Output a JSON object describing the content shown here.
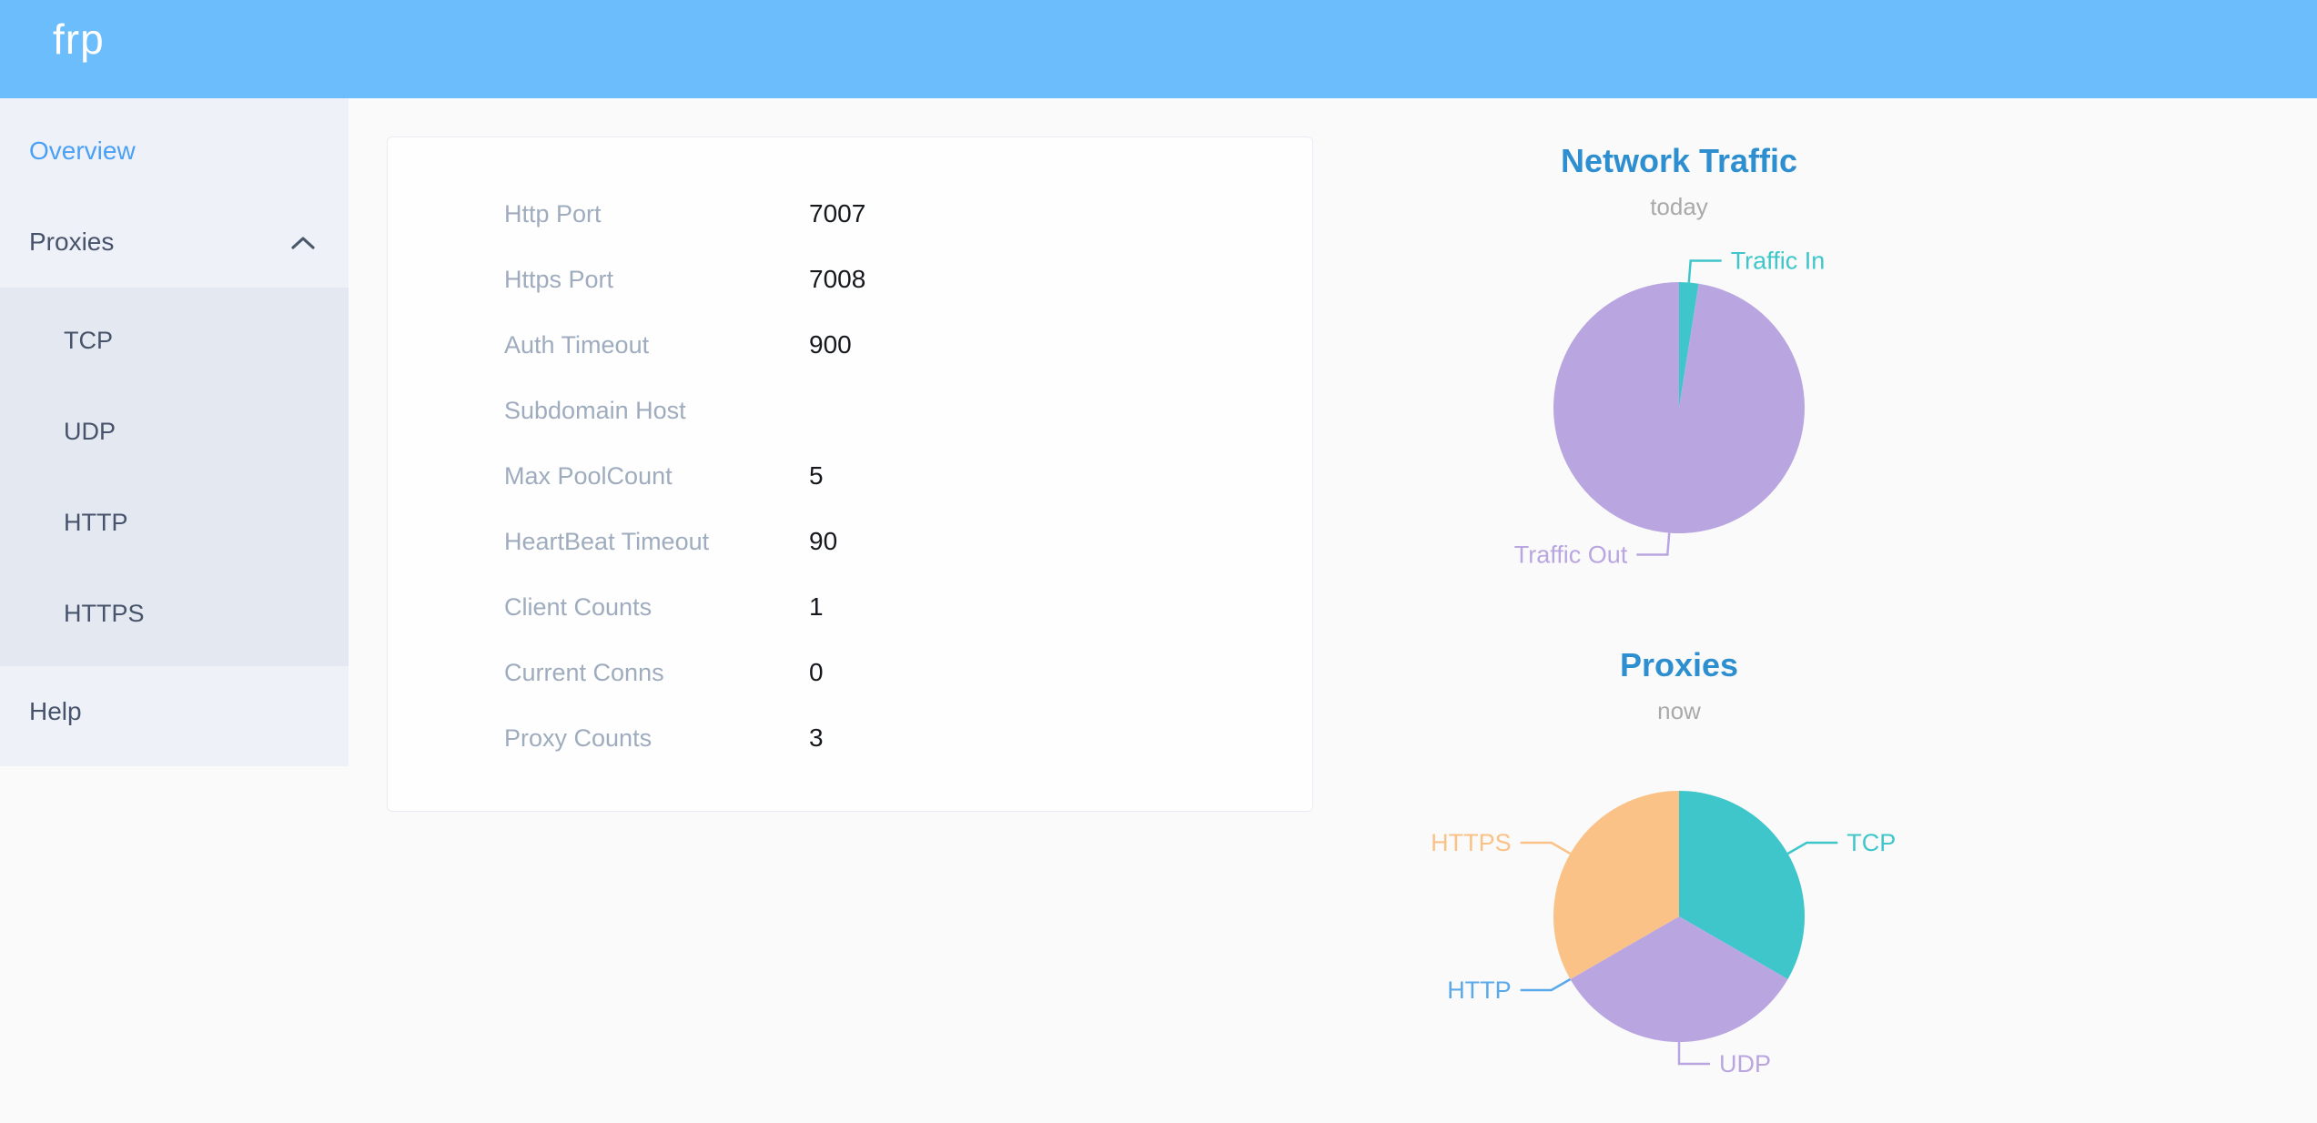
{
  "header": {
    "logo": "frp"
  },
  "sidebar": {
    "items": [
      {
        "label": "Overview",
        "active": true
      },
      {
        "label": "Proxies",
        "expanded": true
      },
      {
        "label": "Help",
        "active": false
      }
    ],
    "submenu": [
      {
        "label": "TCP"
      },
      {
        "label": "UDP"
      },
      {
        "label": "HTTP"
      },
      {
        "label": "HTTPS"
      }
    ]
  },
  "server_info": {
    "rows": [
      {
        "label": "Http Port",
        "value": "7007"
      },
      {
        "label": "Https Port",
        "value": "7008"
      },
      {
        "label": "Auth Timeout",
        "value": "900"
      },
      {
        "label": "Subdomain Host",
        "value": ""
      },
      {
        "label": "Max PoolCount",
        "value": "5"
      },
      {
        "label": "HeartBeat Timeout",
        "value": "90"
      },
      {
        "label": "Client Counts",
        "value": "1"
      },
      {
        "label": "Current Conns",
        "value": "0"
      },
      {
        "label": "Proxy Counts",
        "value": "3"
      }
    ]
  },
  "chart_data": [
    {
      "type": "pie",
      "title": "Network Traffic",
      "subtitle": "today",
      "legend_position": "outside-connector-labels",
      "values_unit": "percent-estimated-from-arc",
      "slices": [
        {
          "label": "Traffic In",
          "value": 2.5,
          "color": "#3fc6cb"
        },
        {
          "label": "Traffic Out",
          "value": 97.5,
          "color": "#b9a6e0"
        }
      ]
    },
    {
      "type": "pie",
      "title": "Proxies",
      "subtitle": "now",
      "legend_position": "outside-connector-labels",
      "values_unit": "proxy-count",
      "slices": [
        {
          "label": "TCP",
          "value": 1,
          "color": "#3fc6cb"
        },
        {
          "label": "UDP",
          "value": 1,
          "color": "#b9a6e0"
        },
        {
          "label": "HTTP",
          "value": 0,
          "color": "#5aa9ea"
        },
        {
          "label": "HTTPS",
          "value": 1,
          "color": "#fbc288"
        }
      ]
    }
  ],
  "colors": {
    "header_bg": "#6cbdfb",
    "sidebar_bg": "#eef1f7",
    "submenu_bg": "#e4e8f1",
    "active_nav": "#4aa0f5",
    "chart_title": "#2d8fd0",
    "teal": "#3fc6cb",
    "purple": "#b9a6e0",
    "blue": "#5aa9ea",
    "orange": "#fbc288"
  }
}
